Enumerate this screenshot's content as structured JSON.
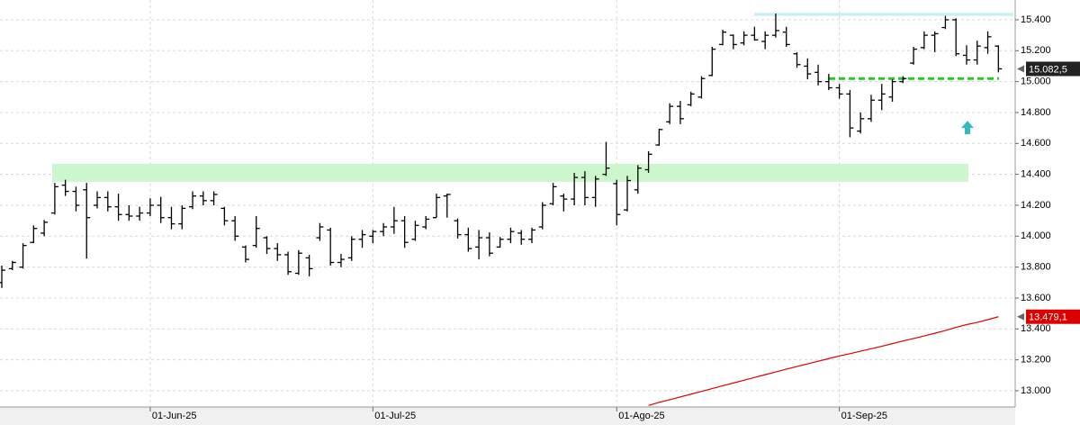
{
  "chart_data": {
    "type": "ohlc",
    "categories": [
      null,
      null,
      null,
      null,
      null,
      null,
      null,
      null,
      null,
      null,
      null,
      null,
      null,
      null,
      "01-Jun-25",
      null,
      null,
      null,
      null,
      null,
      null,
      null,
      null,
      null,
      null,
      null,
      null,
      null,
      null,
      null,
      null,
      null,
      null,
      null,
      null,
      "01-Jul-25",
      null,
      null,
      null,
      null,
      null,
      null,
      null,
      null,
      null,
      null,
      null,
      null,
      null,
      null,
      null,
      null,
      null,
      null,
      null,
      null,
      null,
      null,
      "01-Ago-25",
      null,
      null,
      null,
      null,
      null,
      null,
      null,
      null,
      null,
      null,
      null,
      null,
      null,
      null,
      null,
      null,
      null,
      null,
      null,
      null,
      "01-Sep-25",
      null,
      null,
      null,
      null,
      null,
      null,
      null,
      null,
      null,
      null,
      null,
      null,
      null,
      null,
      null
    ],
    "open": [
      13700,
      13790,
      13800,
      13960,
      14020,
      14150,
      14330,
      14290,
      14300,
      14200,
      14250,
      14190,
      14140,
      14130,
      14150,
      14200,
      14120,
      14080,
      14190,
      14260,
      14230,
      14180,
      14100,
      13930,
      13940,
      13990,
      13920,
      13880,
      13760,
      13860,
      13990,
      14040,
      13830,
      13860,
      13980,
      14000,
      14030,
      14060,
      14100,
      13980,
      14060,
      14120,
      14260,
      14100,
      14010,
      13930,
      13990,
      13930,
      13980,
      14020,
      13980,
      14060,
      14210,
      14260,
      14240,
      14380,
      14250,
      14400,
      14340,
      14170,
      14300,
      14430,
      14590,
      14740,
      14840,
      14850,
      14900,
      15040,
      15240,
      15300,
      15250,
      15300,
      15260,
      15300,
      15320,
      15180,
      15100,
      15060,
      15000,
      14960,
      14920,
      14680,
      14760,
      14880,
      14900,
      15000,
      15120,
      15220,
      15300,
      15350,
      15400,
      15170,
      15140,
      15220,
      15230
    ],
    "high": [
      13810,
      13840,
      13955,
      14070,
      14105,
      14345,
      14365,
      14320,
      14345,
      14290,
      14290,
      14275,
      14200,
      14190,
      14245,
      14255,
      14190,
      14200,
      14290,
      14290,
      14290,
      14190,
      14130,
      13940,
      14130,
      14000,
      13955,
      13900,
      13910,
      13880,
      14085,
      14055,
      13885,
      14000,
      14040,
      14040,
      14085,
      14190,
      14130,
      14100,
      14130,
      14275,
      14275,
      14115,
      14055,
      14040,
      14025,
      13995,
      14055,
      14040,
      14055,
      14220,
      14345,
      14275,
      14410,
      14420,
      14390,
      14610,
      14365,
      14390,
      14460,
      14550,
      14695,
      14860,
      14875,
      14935,
      15035,
      15225,
      15335,
      15305,
      15325,
      15355,
      15325,
      15440,
      15355,
      15190,
      15150,
      15110,
      15050,
      14985,
      14945,
      14800,
      14915,
      14985,
      15015,
      15035,
      15225,
      15325,
      15325,
      15425,
      15410,
      15235,
      15265,
      15325,
      15235
    ],
    "low": [
      13665,
      13780,
      13790,
      13955,
      14000,
      14140,
      14260,
      14160,
      13855,
      14180,
      14160,
      14100,
      14100,
      14100,
      14130,
      14085,
      14045,
      14045,
      14175,
      14200,
      14200,
      14070,
      13970,
      13830,
      13925,
      13885,
      13840,
      13750,
      13750,
      13740,
      13970,
      13810,
      13800,
      13840,
      13925,
      13955,
      14000,
      14015,
      13925,
      13970,
      14045,
      14120,
      14120,
      13985,
      13900,
      13850,
      13870,
      13925,
      13955,
      13945,
      13955,
      14045,
      14200,
      14160,
      14200,
      14200,
      14190,
      14390,
      14070,
      14160,
      14275,
      14410,
      14585,
      14725,
      14725,
      14840,
      14890,
      15035,
      15235,
      15210,
      15235,
      15265,
      15210,
      15285,
      15225,
      15090,
      15015,
      14975,
      14945,
      14890,
      14640,
      14665,
      14740,
      14815,
      14870,
      14990,
      15110,
      15210,
      15190,
      15340,
      15165,
      15110,
      15110,
      15180,
      15060
    ],
    "close": [
      13780,
      13830,
      13940,
      14050,
      14090,
      14320,
      14290,
      14200,
      14120,
      14250,
      14190,
      14140,
      14130,
      14150,
      14200,
      14120,
      14080,
      14180,
      14260,
      14230,
      14270,
      14100,
      14000,
      13850,
      14050,
      13920,
      13880,
      13770,
      13890,
      13790,
      14060,
      13830,
      13850,
      13980,
      14010,
      14030,
      14060,
      14100,
      13960,
      14070,
      14110,
      14250,
      14270,
      14010,
      13920,
      13990,
      13890,
      13980,
      14030,
      13980,
      14040,
      14200,
      14320,
      14240,
      14380,
      14250,
      14370,
      14440,
      14140,
      14360,
      14440,
      14530,
      14690,
      14840,
      14760,
      14920,
      15020,
      15210,
      15320,
      15240,
      15300,
      15270,
      15300,
      15330,
      15240,
      15110,
      15050,
      15000,
      14960,
      14920,
      14700,
      14760,
      14880,
      14920,
      15000,
      15020,
      15210,
      15300,
      15310,
      15400,
      15180,
      15140,
      15230,
      15290,
      15082.5
    ],
    "color": "#000000",
    "ma": {
      "color": "#dd0000",
      "values": [
        null,
        null,
        null,
        null,
        null,
        null,
        null,
        null,
        null,
        null,
        null,
        null,
        null,
        null,
        null,
        null,
        null,
        null,
        null,
        null,
        null,
        null,
        null,
        null,
        null,
        null,
        null,
        null,
        null,
        null,
        null,
        null,
        null,
        null,
        null,
        null,
        null,
        null,
        null,
        null,
        null,
        null,
        null,
        null,
        null,
        null,
        null,
        null,
        null,
        null,
        null,
        null,
        null,
        null,
        null,
        null,
        null,
        null,
        null,
        null,
        null,
        12905,
        12925,
        12942,
        12960,
        12978,
        12996,
        13014,
        13032,
        13050,
        13068,
        13086,
        13104,
        13122,
        13140,
        13157,
        13174,
        13191,
        13208,
        13225,
        13240,
        13256,
        13272,
        13288,
        13305,
        13322,
        13338,
        13355,
        13372,
        13390,
        13410,
        13428,
        13442,
        13460,
        13479
      ]
    },
    "ylim": [
      12895,
      15528
    ],
    "yticks": [
      {
        "value": 13000,
        "label": "13.000"
      },
      {
        "value": 13200,
        "label": "13.200"
      },
      {
        "value": 13400,
        "label": "13.400"
      },
      {
        "value": 13600,
        "label": "13.600"
      },
      {
        "value": 13800,
        "label": "13.800"
      },
      {
        "value": 14000,
        "label": "14.000"
      },
      {
        "value": 14200,
        "label": "14.200"
      },
      {
        "value": 14400,
        "label": "14.400"
      },
      {
        "value": 14600,
        "label": "14.600"
      },
      {
        "value": 14800,
        "label": "14.800"
      },
      {
        "value": 15000,
        "label": "15.000"
      },
      {
        "value": 15200,
        "label": "15.200"
      },
      {
        "value": 15400,
        "label": "15.400"
      }
    ],
    "grid": true,
    "support_zone": {
      "range": [
        14352,
        14468
      ],
      "color": "#ccf7cc"
    },
    "resistance_line": {
      "range": [
        15425,
        15445
      ],
      "color": "#c8eef8"
    },
    "target_line": {
      "value": 15020,
      "color": "#22cc22"
    },
    "arrow": {
      "value": 14700,
      "color": "#33bbbb"
    },
    "price_tags": [
      {
        "value": 15082.5,
        "label": "15.082,5",
        "color": "#222222"
      },
      {
        "value": 13479.1,
        "label": "13.479,1",
        "color": "#dd0000"
      }
    ]
  }
}
